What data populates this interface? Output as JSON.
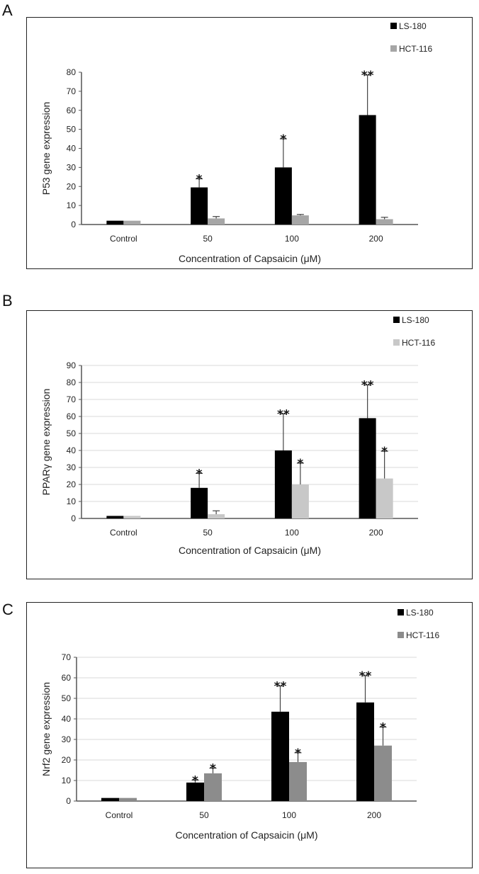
{
  "chart_data": [
    {
      "panel": "A",
      "type": "bar",
      "title": "",
      "categories": [
        "Control",
        "50",
        "100",
        "200"
      ],
      "xlabel": "Concentration of Capsaicin (μM)",
      "ylabel": "P53 gene expression",
      "ylim": [
        0,
        80
      ],
      "yticks": [
        0,
        10,
        20,
        30,
        40,
        50,
        60,
        70,
        80
      ],
      "grid": false,
      "legend": "top-right",
      "series": [
        {
          "name": "LS-180",
          "color": "#000000",
          "values": [
            2,
            19.5,
            30,
            57.5
          ],
          "errors": [
            0,
            4.5,
            15,
            21
          ],
          "stars": [
            "",
            "*",
            "*",
            "**"
          ]
        },
        {
          "name": "HCT-116",
          "color": "#a6a6a6",
          "values": [
            2,
            3.2,
            4.8,
            2.8
          ],
          "errors": [
            0,
            1,
            0.5,
            1
          ],
          "stars": [
            "",
            "",
            "",
            ""
          ]
        }
      ]
    },
    {
      "panel": "B",
      "type": "bar",
      "title": "",
      "categories": [
        "Control",
        "50",
        "100",
        "200"
      ],
      "xlabel": "Concentration of Capsaicin (μM)",
      "ylabel": "PPARγ gene expression",
      "ylim": [
        0,
        90
      ],
      "yticks": [
        0,
        10,
        20,
        30,
        40,
        50,
        60,
        70,
        80,
        90
      ],
      "grid": true,
      "legend": "top-right",
      "series": [
        {
          "name": "LS-180",
          "color": "#000000",
          "values": [
            1.5,
            18,
            40,
            59
          ],
          "errors": [
            0,
            8.5,
            21.5,
            19.5
          ],
          "stars": [
            "",
            "*",
            "**",
            "**"
          ]
        },
        {
          "name": "HCT-116",
          "color": "#c8c8c8",
          "values": [
            1.5,
            2.5,
            20,
            23.5
          ],
          "errors": [
            0,
            2,
            12.5,
            16
          ],
          "stars": [
            "",
            "",
            "*",
            "*"
          ]
        }
      ]
    },
    {
      "panel": "C",
      "type": "bar",
      "title": "",
      "categories": [
        "Control",
        "50",
        "100",
        "200"
      ],
      "xlabel": "Concentration of Capsaicin (μM)",
      "ylabel": "Nrf2 gene expression",
      "ylim": [
        0,
        70
      ],
      "yticks": [
        0,
        10,
        20,
        30,
        40,
        50,
        60,
        70
      ],
      "grid": true,
      "legend": "top-right",
      "series": [
        {
          "name": "LS-180",
          "color": "#000000",
          "values": [
            1.5,
            9,
            43.5,
            48
          ],
          "errors": [
            0,
            1.2,
            12.5,
            13
          ],
          "stars": [
            "",
            "*",
            "**",
            "**"
          ]
        },
        {
          "name": "HCT-116",
          "color": "#8c8c8c",
          "values": [
            1.5,
            13.5,
            19,
            27
          ],
          "errors": [
            0,
            2.5,
            4.5,
            9
          ],
          "stars": [
            "",
            "*",
            "*",
            "*"
          ]
        }
      ]
    }
  ]
}
